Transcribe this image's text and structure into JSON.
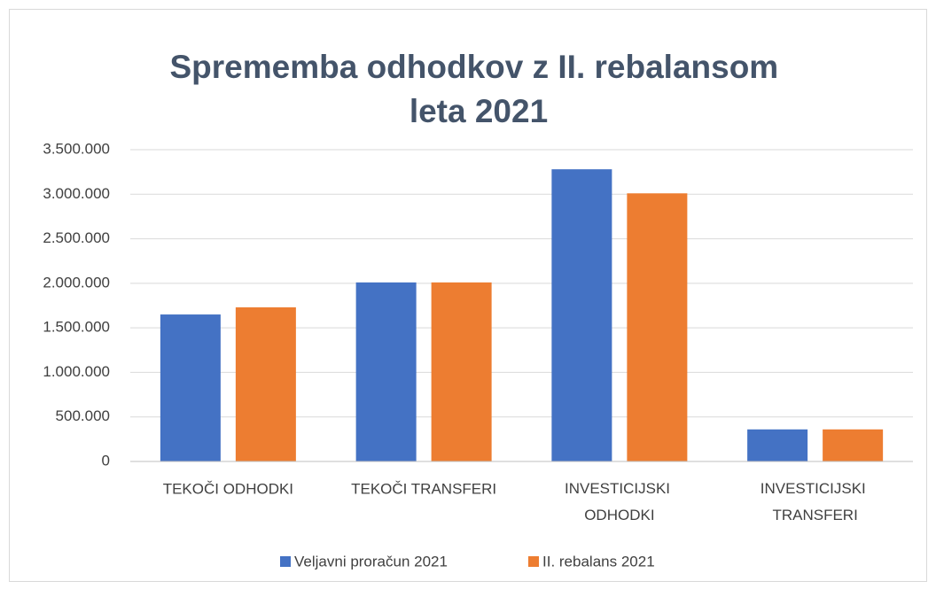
{
  "chart_data": {
    "type": "bar",
    "title": "Sprememba odhodkov z II. rebalansom leta 2021",
    "categories": [
      "TEKOČI ODHODKI",
      "TEKOČI TRANSFERI",
      "INVESTICIJSKI ODHODKI",
      "INVESTICIJSKI TRANSFERI"
    ],
    "series": [
      {
        "name": "Veljavni proračun 2021",
        "color": "#4472c4",
        "values": [
          1650000,
          2010000,
          3280000,
          360000
        ]
      },
      {
        "name": "II. rebalans 2021",
        "color": "#ed7d31",
        "values": [
          1730000,
          2010000,
          3010000,
          360000
        ]
      }
    ],
    "ylim": [
      0,
      3500000
    ],
    "yticks": [
      0,
      {
        "value": 500000,
        "label": "500.000"
      },
      {
        "value": 1000000,
        "label": "1.000.000"
      },
      {
        "value": 1500000,
        "label": "1.500.000"
      },
      {
        "value": 2000000,
        "label": "2.000.000"
      },
      {
        "value": 2500000,
        "label": "2.500.000"
      },
      {
        "value": 3000000,
        "label": "3.000.000"
      },
      {
        "value": 3500000,
        "label": "3.500.000"
      }
    ],
    "grid": true,
    "legend": "bottom"
  }
}
